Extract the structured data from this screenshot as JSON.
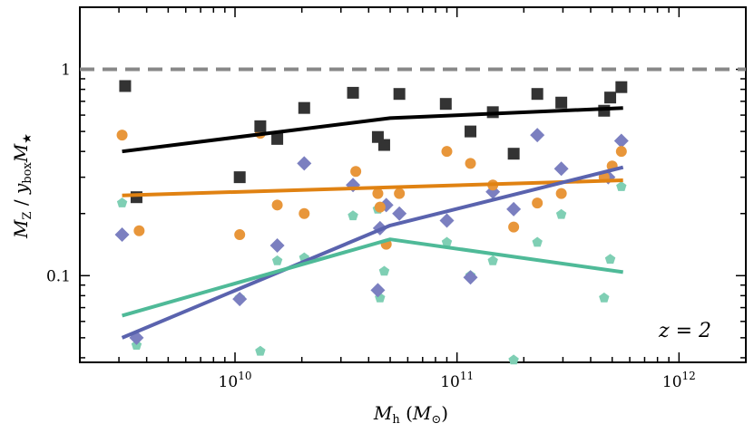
{
  "chart_data": {
    "type": "scatter",
    "xscale": "log",
    "yscale": "log",
    "xlim": [
      2000000000,
      2000000000000
    ],
    "ylim": [
      0.038,
      2.0
    ],
    "xlabel": {
      "main": "M",
      "sub": "h",
      "rest": " (",
      "unit_main": "M",
      "unit_sub": "⊙",
      "close": ")"
    },
    "ylabel": {
      "p1": "M",
      "s1": "Z",
      "p2": " / ",
      "p3": "y",
      "s3": "box",
      "p4": "M",
      "s4": "★"
    },
    "x_ticks": [
      {
        "value": 10000000000,
        "base": "10",
        "exp": "10"
      },
      {
        "value": 100000000000,
        "base": "10",
        "exp": "11"
      },
      {
        "value": 1000000000000,
        "base": "10",
        "exp": "12"
      }
    ],
    "y_ticks": [
      {
        "value": 0.1,
        "label": "0.1"
      },
      {
        "value": 1,
        "label": "1"
      }
    ],
    "annotation": "z = 2",
    "reference_line": {
      "y": 1,
      "style": "dashed",
      "color": "#888888"
    },
    "series": [
      {
        "name": "black",
        "marker": "square",
        "color": "#333333",
        "line_color": "#000000",
        "points": [
          [
            3200000000.0,
            0.83
          ],
          [
            3600000000.0,
            0.24
          ],
          [
            10500000000.0,
            0.3
          ],
          [
            13000000000.0,
            0.53
          ],
          [
            15500000000.0,
            0.46
          ],
          [
            20500000000.0,
            0.65
          ],
          [
            34000000000.0,
            0.77
          ],
          [
            44000000000.0,
            0.47
          ],
          [
            47000000000.0,
            0.43
          ],
          [
            55000000000.0,
            0.76
          ],
          [
            89000000000.0,
            0.68
          ],
          [
            115000000000.0,
            0.5
          ],
          [
            145000000000.0,
            0.62
          ],
          [
            180000000000.0,
            0.39
          ],
          [
            230000000000.0,
            0.76
          ],
          [
            295000000000.0,
            0.69
          ],
          [
            460000000000.0,
            0.63
          ],
          [
            490000000000.0,
            0.73
          ],
          [
            550000000000.0,
            0.82
          ]
        ],
        "line": [
          [
            3100000000.0,
            0.4
          ],
          [
            50000000000.0,
            0.58
          ],
          [
            560000000000.0,
            0.65
          ]
        ]
      },
      {
        "name": "orange",
        "marker": "circle",
        "color": "#E8963A",
        "line_color": "#E08212",
        "points": [
          [
            3100000000.0,
            0.48
          ],
          [
            3700000000.0,
            0.165
          ],
          [
            10500000000.0,
            0.158
          ],
          [
            13000000000.0,
            0.49
          ],
          [
            15500000000.0,
            0.22
          ],
          [
            20500000000.0,
            0.2
          ],
          [
            35000000000.0,
            0.32
          ],
          [
            44000000000.0,
            0.25
          ],
          [
            45000000000.0,
            0.215
          ],
          [
            48000000000.0,
            0.142
          ],
          [
            55000000000.0,
            0.25
          ],
          [
            90000000000.0,
            0.4
          ],
          [
            115000000000.0,
            0.35
          ],
          [
            145000000000.0,
            0.275
          ],
          [
            180000000000.0,
            0.172
          ],
          [
            230000000000.0,
            0.225
          ],
          [
            295000000000.0,
            0.25
          ],
          [
            460000000000.0,
            0.3
          ],
          [
            500000000000.0,
            0.34
          ],
          [
            550000000000.0,
            0.4
          ]
        ],
        "line": [
          [
            3100000000.0,
            0.245
          ],
          [
            560000000000.0,
            0.29
          ]
        ]
      },
      {
        "name": "blue",
        "marker": "diamond",
        "color": "#7B7FC0",
        "line_color": "#5A63AE",
        "points": [
          [
            3100000000.0,
            0.158
          ],
          [
            3600000000.0,
            0.05
          ],
          [
            10500000000.0,
            0.077
          ],
          [
            15500000000.0,
            0.14
          ],
          [
            20500000000.0,
            0.35
          ],
          [
            34000000000.0,
            0.275
          ],
          [
            44000000000.0,
            0.085
          ],
          [
            45000000000.0,
            0.17
          ],
          [
            48000000000.0,
            0.22
          ],
          [
            55000000000.0,
            0.2
          ],
          [
            90000000000.0,
            0.185
          ],
          [
            115000000000.0,
            0.098
          ],
          [
            145000000000.0,
            0.255
          ],
          [
            180000000000.0,
            0.21
          ],
          [
            230000000000.0,
            0.48
          ],
          [
            295000000000.0,
            0.33
          ],
          [
            480000000000.0,
            0.3
          ],
          [
            550000000000.0,
            0.45
          ]
        ],
        "line": [
          [
            3100000000.0,
            0.05
          ],
          [
            50000000000.0,
            0.175
          ],
          [
            560000000000.0,
            0.335
          ]
        ]
      },
      {
        "name": "green",
        "marker": "pentagon",
        "color": "#7FCFB4",
        "line_color": "#4FBA98",
        "points": [
          [
            3100000000.0,
            0.225
          ],
          [
            3600000000.0,
            0.046
          ],
          [
            10500000000.0,
            0.078
          ],
          [
            13000000000.0,
            0.043
          ],
          [
            15500000000.0,
            0.118
          ],
          [
            20500000000.0,
            0.122
          ],
          [
            34000000000.0,
            0.195
          ],
          [
            44000000000.0,
            0.21
          ],
          [
            45000000000.0,
            0.078
          ],
          [
            47000000000.0,
            0.105
          ],
          [
            55000000000.0,
            0.25
          ],
          [
            90000000000.0,
            0.145
          ],
          [
            115000000000.0,
            0.1
          ],
          [
            145000000000.0,
            0.118
          ],
          [
            180000000000.0,
            0.039
          ],
          [
            230000000000.0,
            0.145
          ],
          [
            295000000000.0,
            0.198
          ],
          [
            460000000000.0,
            0.078
          ],
          [
            490000000000.0,
            0.12
          ],
          [
            550000000000.0,
            0.27
          ]
        ],
        "line": [
          [
            3100000000.0,
            0.064
          ],
          [
            50000000000.0,
            0.15
          ],
          [
            560000000000.0,
            0.104
          ]
        ]
      }
    ]
  }
}
